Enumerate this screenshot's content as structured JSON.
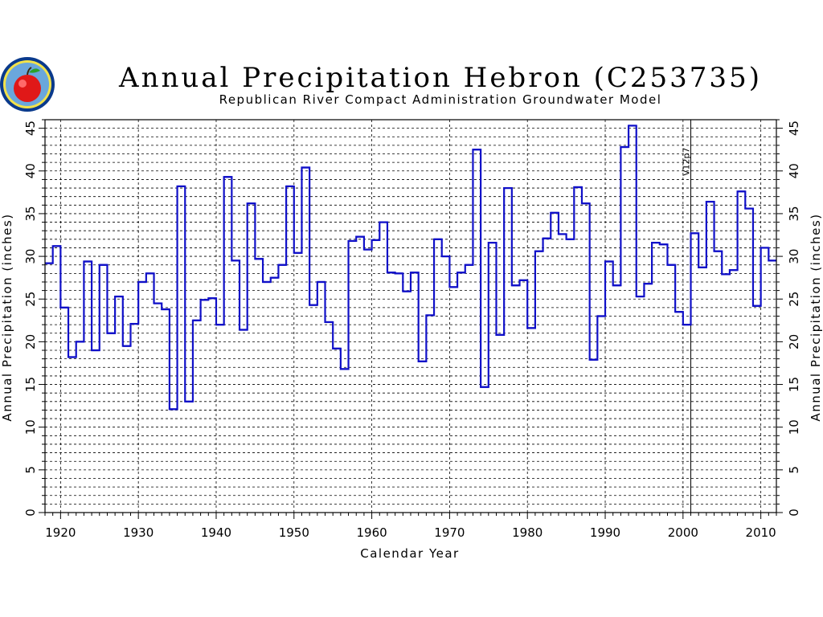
{
  "chart_data": {
    "type": "line",
    "step": true,
    "title": "Annual Precipitation Hebron (C253735)",
    "subtitle": "Republican River Compact Administration Groundwater Model",
    "xlabel": "Calendar Year",
    "ylabel": "Annual Precipitation (inches)",
    "ylabel_right": "Annual Precipitation (inches)",
    "xlim": [
      1918,
      2012
    ],
    "ylim": [
      0,
      46
    ],
    "xticks": [
      "1920",
      "1930",
      "1940",
      "1950",
      "1960",
      "1970",
      "1980",
      "1990",
      "2000",
      "2010"
    ],
    "yticks": [
      "0",
      "5",
      "10",
      "15",
      "20",
      "25",
      "30",
      "35",
      "40",
      "45"
    ],
    "grid": true,
    "annotation": {
      "text": "V12p7",
      "x": 2001
    },
    "line_color": "#1010c8",
    "x": [
      1918,
      1919,
      1920,
      1921,
      1922,
      1923,
      1924,
      1925,
      1926,
      1927,
      1928,
      1929,
      1930,
      1931,
      1932,
      1933,
      1934,
      1935,
      1936,
      1937,
      1938,
      1939,
      1940,
      1941,
      1942,
      1943,
      1944,
      1945,
      1946,
      1947,
      1948,
      1949,
      1950,
      1951,
      1952,
      1953,
      1954,
      1955,
      1956,
      1957,
      1958,
      1959,
      1960,
      1961,
      1962,
      1963,
      1964,
      1965,
      1966,
      1967,
      1968,
      1969,
      1970,
      1971,
      1972,
      1973,
      1974,
      1975,
      1976,
      1977,
      1978,
      1979,
      1980,
      1981,
      1982,
      1983,
      1984,
      1985,
      1986,
      1987,
      1988,
      1989,
      1990,
      1991,
      1992,
      1993,
      1994,
      1995,
      1996,
      1997,
      1998,
      1999,
      2000,
      2001,
      2002,
      2003,
      2004,
      2005,
      2006,
      2007,
      2008,
      2009,
      2010,
      2011
    ],
    "values": [
      29.2,
      31.2,
      24.0,
      18.2,
      20.0,
      29.4,
      19.0,
      29.0,
      21.0,
      25.3,
      19.5,
      22.1,
      27.0,
      28.0,
      24.5,
      23.8,
      12.1,
      38.2,
      13.0,
      22.5,
      24.9,
      25.1,
      22.0,
      39.3,
      29.5,
      21.4,
      36.2,
      29.7,
      27.0,
      27.5,
      29.0,
      38.2,
      30.4,
      40.4,
      24.3,
      27.0,
      22.3,
      19.2,
      16.8,
      31.8,
      32.3,
      30.8,
      31.9,
      34.0,
      28.1,
      28.0,
      25.9,
      28.1,
      17.7,
      23.1,
      32.0,
      30.0,
      26.4,
      28.1,
      29.0,
      42.5,
      14.7,
      31.6,
      20.8,
      38.0,
      26.6,
      27.2,
      21.6,
      30.6,
      32.1,
      35.1,
      32.6,
      32.0,
      38.1,
      36.2,
      17.9,
      23.0,
      29.4,
      26.6,
      42.8,
      45.3,
      25.3,
      26.8,
      31.6,
      31.4,
      29.0,
      23.5,
      22.0,
      32.7,
      28.7,
      36.4,
      30.6,
      27.9,
      28.4,
      37.6,
      35.6,
      24.2,
      31.0,
      29.5
    ]
  }
}
